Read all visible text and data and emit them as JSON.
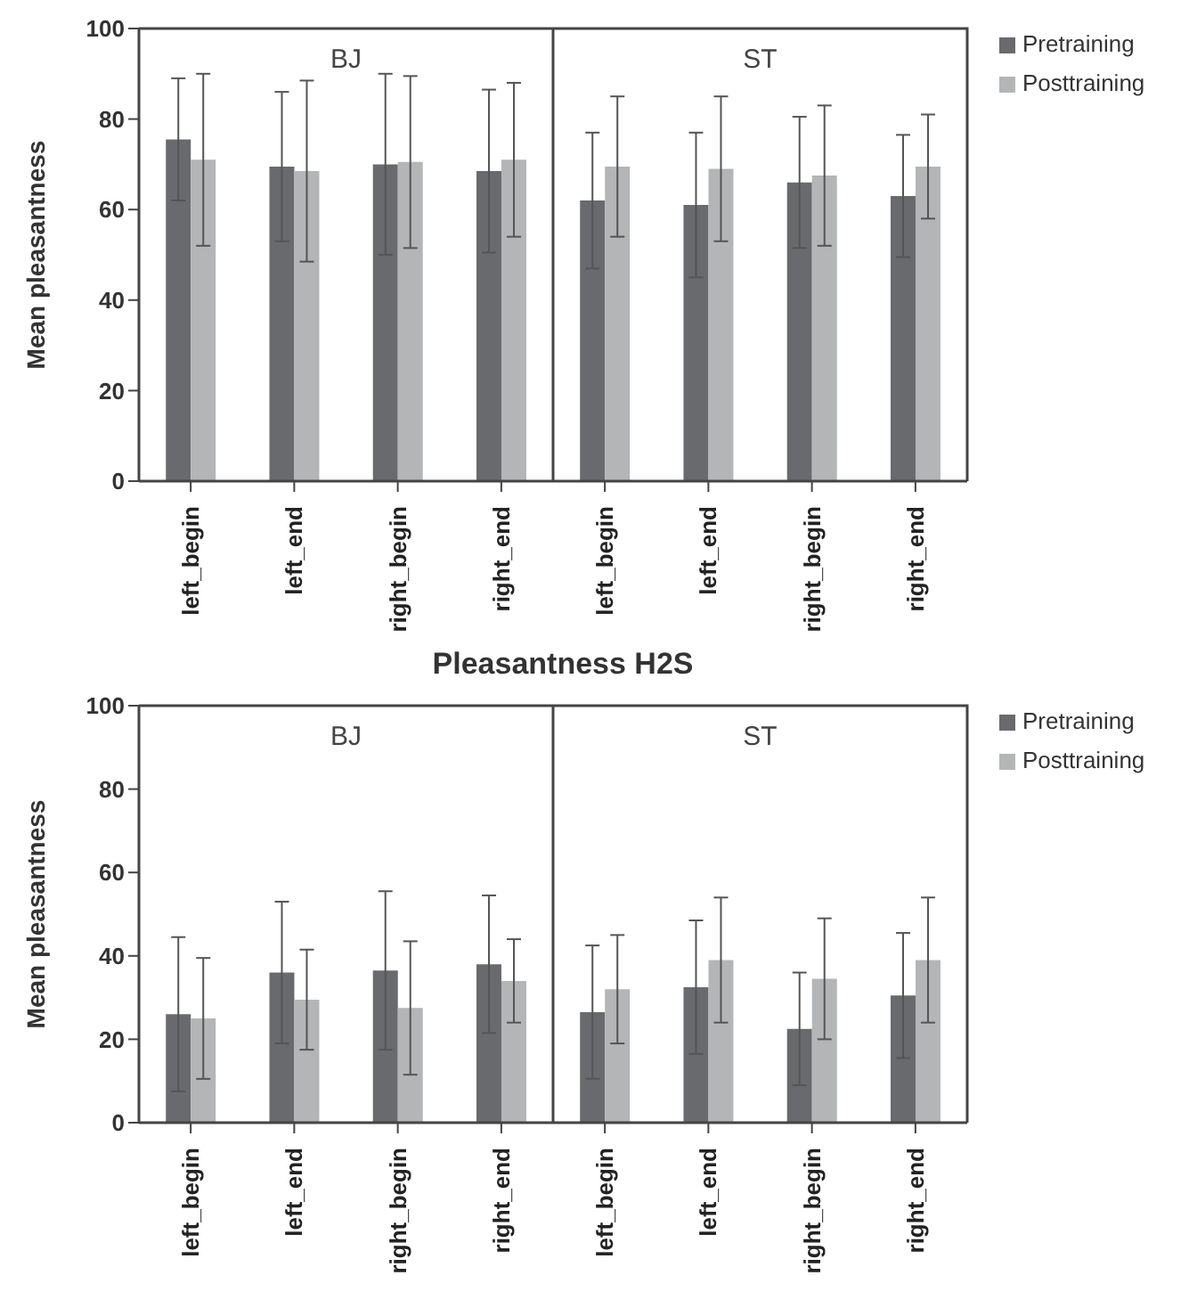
{
  "chart_data": [
    {
      "type": "bar",
      "ylabel": "Mean pleasantness",
      "categories": [
        "left_begin",
        "left_end",
        "right_begin",
        "right_end",
        "left_begin",
        "left_end",
        "right_begin",
        "right_end"
      ],
      "series": [
        {
          "name": "Pretraining",
          "color": "#696a6e",
          "values": [
            75.5,
            69.5,
            70,
            68.5,
            62,
            61,
            66,
            63
          ],
          "errors": [
            13.5,
            16.5,
            20,
            18,
            15,
            16,
            14.5,
            13.5
          ]
        },
        {
          "name": "Posttraining",
          "color": "#b4b5b7",
          "values": [
            71,
            68.5,
            70.5,
            71,
            69.5,
            69,
            67.5,
            69.5
          ],
          "errors": [
            19,
            20,
            19,
            17,
            15.5,
            16,
            15.5,
            11.5
          ]
        }
      ],
      "annotations": [
        "BJ",
        "ST"
      ],
      "ylim": [
        0,
        100
      ],
      "yticks": [
        0,
        20,
        40,
        60,
        80,
        100
      ],
      "legend": "top right",
      "grid": false
    },
    {
      "type": "bar",
      "title": "Pleasantness H2S",
      "ylabel": "Mean pleasantness",
      "categories": [
        "left_begin",
        "left_end",
        "right_begin",
        "right_end",
        "left_begin",
        "left_end",
        "right_begin",
        "right_end"
      ],
      "series": [
        {
          "name": "Pretraining",
          "color": "#696a6e",
          "values": [
            26,
            36,
            36.5,
            38,
            26.5,
            32.5,
            22.5,
            30.5
          ],
          "errors": [
            18.5,
            17,
            19,
            16.5,
            16,
            16,
            13.5,
            15
          ]
        },
        {
          "name": "Posttraining",
          "color": "#b4b5b7",
          "values": [
            25,
            29.5,
            27.5,
            34,
            32,
            39,
            34.5,
            39
          ],
          "errors": [
            14.5,
            12,
            16,
            10,
            13,
            15,
            14.5,
            15
          ]
        }
      ],
      "annotations": [
        "BJ",
        "ST"
      ],
      "ylim": [
        0,
        100
      ],
      "yticks": [
        0,
        20,
        40,
        60,
        80,
        100
      ],
      "legend": "top right",
      "grid": false
    }
  ]
}
